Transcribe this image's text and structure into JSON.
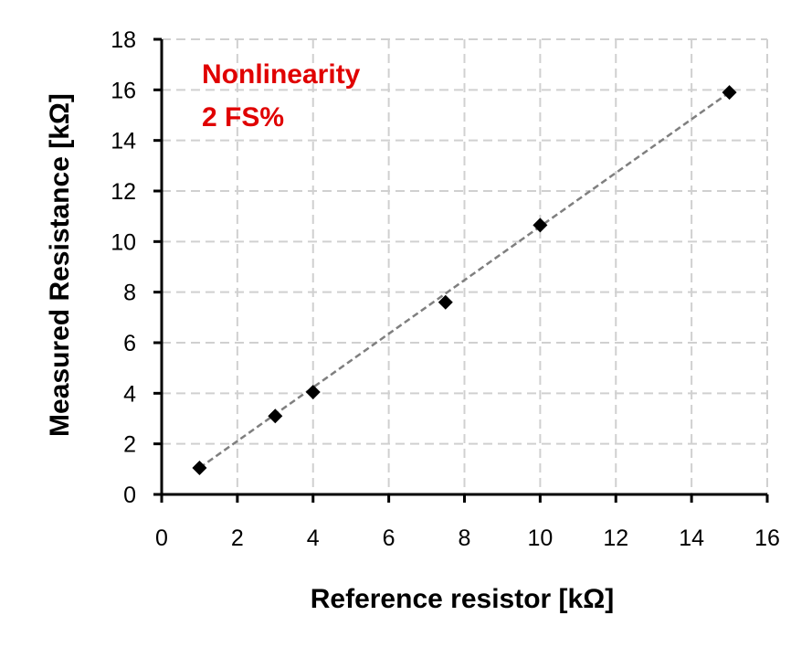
{
  "chart_data": {
    "type": "scatter",
    "xlabel": "Reference resistor [kΩ]",
    "ylabel": "Measured Resistance  [kΩ]",
    "xlim": [
      0,
      16
    ],
    "ylim": [
      0,
      18
    ],
    "xticks": [
      "0",
      "2",
      "4",
      "6",
      "8",
      "10",
      "12",
      "14",
      "16"
    ],
    "yticks": [
      "0",
      "2",
      "4",
      "6",
      "8",
      "10",
      "12",
      "14",
      "16",
      "18"
    ],
    "grid": true,
    "marker": "diamond",
    "series": [
      {
        "points": [
          {
            "x": 1,
            "y": 1.05
          },
          {
            "x": 3,
            "y": 3.1
          },
          {
            "x": 4,
            "y": 4.05
          },
          {
            "x": 7.5,
            "y": 7.6
          },
          {
            "x": 10,
            "y": 10.65
          },
          {
            "x": 15,
            "y": 15.9
          }
        ],
        "color": "#000000"
      }
    ],
    "trendline": {
      "style": "dashed",
      "color": "#7f7f7f",
      "from": {
        "x": 1,
        "y": 1.05
      },
      "to": {
        "x": 15,
        "y": 15.9
      }
    },
    "annotation": {
      "lines": [
        "Nonlinearity",
        "2 FS%"
      ],
      "color": "#e00000"
    }
  }
}
